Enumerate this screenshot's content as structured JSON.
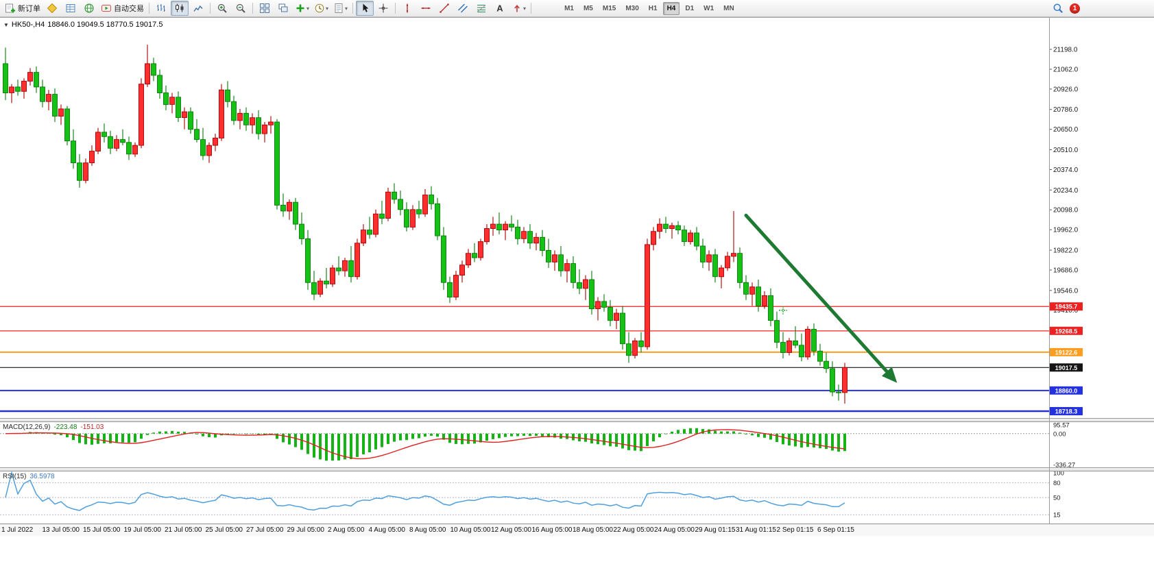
{
  "toolbar": {
    "new_order_label": "新订单",
    "autotrading_label": "自动交易",
    "timeframes": [
      "M1",
      "M5",
      "M15",
      "M30",
      "H1",
      "H4",
      "D1",
      "W1",
      "MN"
    ],
    "active_timeframe": "H4",
    "badge_count": "1",
    "icon_names": [
      "new-order-icon",
      "metaeditor-icon",
      "market-watch-icon",
      "web-icon",
      "autotrading-icon",
      "bar-chart-icon",
      "candlestick-chart-icon",
      "line-chart-icon",
      "zoom-in-icon",
      "zoom-out-icon",
      "tile-windows-icon",
      "cascade-windows-icon",
      "add-indicator-icon",
      "periods-icon",
      "templates-icon",
      "cursor-icon",
      "crosshair-icon",
      "vertical-line-icon",
      "horizontal-line-icon",
      "trendline-icon",
      "channel-icon",
      "fibonacci-icon",
      "text-icon",
      "arrows-icon",
      "search-icon",
      "notifications-badge"
    ]
  },
  "chart": {
    "symbol_timeframe": "HK50-,H4",
    "ohlc_text": "18846.0 19049.5 18770.5 19017.5"
  },
  "chart_data": {
    "type": "candlestick",
    "symbol": "HK50-",
    "timeframe": "H4",
    "current_bar": {
      "open": 18846.0,
      "high": 19049.5,
      "low": 18770.5,
      "close": 19017.5
    },
    "bull_color": "#ff2e2e",
    "bull_stroke": "#a80000",
    "bear_color": "#16c116",
    "bear_stroke": "#077a07",
    "price_axis_ticks": [
      "21198.0",
      "21062.0",
      "20926.0",
      "20786.0",
      "20650.0",
      "20510.0",
      "20374.0",
      "20234.0",
      "20098.0",
      "19962.0",
      "19822.0",
      "19686.0",
      "19546.0",
      "19410.0"
    ],
    "horizontal_lines": [
      {
        "price": 19435.7,
        "label": "19435.7",
        "color": "#f02020",
        "width": 1.2
      },
      {
        "price": 19268.5,
        "label": "19268.5",
        "color": "#f02020",
        "width": 1.2
      },
      {
        "price": 19122.6,
        "label": "19122.6",
        "color": "#ff9d1e",
        "width": 2
      },
      {
        "price": 19017.5,
        "label": "19017.5",
        "color": "#151515",
        "width": 1.2
      },
      {
        "price": 18860.0,
        "label": "18860.0",
        "color": "#2431e0",
        "width": 2
      },
      {
        "price": 18718.3,
        "label": "18718.3",
        "color": "#2431e0",
        "width": 2.4
      }
    ],
    "trend_arrow": {
      "from": {
        "bar": 120,
        "price": 20060
      },
      "to": {
        "bar": 144,
        "price": 18935
      },
      "color": "#1e7a33"
    },
    "cross_marker": {
      "bar": 126,
      "price": 19410,
      "color": "#28a428"
    },
    "candles": [
      [
        21100,
        21210,
        20850,
        20900
      ],
      [
        20900,
        20960,
        20830,
        20940
      ],
      [
        20940,
        20990,
        20880,
        20910
      ],
      [
        20910,
        21000,
        20860,
        20980
      ],
      [
        20980,
        21070,
        20950,
        21040
      ],
      [
        21040,
        21080,
        20900,
        20940
      ],
      [
        20940,
        20990,
        20800,
        20840
      ],
      [
        20840,
        20920,
        20780,
        20890
      ],
      [
        20890,
        20930,
        20700,
        20740
      ],
      [
        20740,
        20820,
        20680,
        20790
      ],
      [
        20790,
        20810,
        20540,
        20570
      ],
      [
        20570,
        20650,
        20380,
        20420
      ],
      [
        20420,
        20480,
        20250,
        20300
      ],
      [
        20300,
        20450,
        20280,
        20420
      ],
      [
        20420,
        20540,
        20400,
        20500
      ],
      [
        20500,
        20660,
        20480,
        20630
      ],
      [
        20630,
        20690,
        20560,
        20600
      ],
      [
        20600,
        20640,
        20480,
        20520
      ],
      [
        20520,
        20610,
        20500,
        20580
      ],
      [
        20580,
        20650,
        20540,
        20560
      ],
      [
        20560,
        20600,
        20440,
        20480
      ],
      [
        20480,
        20560,
        20460,
        20540
      ],
      [
        20540,
        21000,
        20520,
        20960
      ],
      [
        20960,
        21230,
        20940,
        21100
      ],
      [
        21100,
        21140,
        20980,
        21020
      ],
      [
        21020,
        21060,
        20860,
        20900
      ],
      [
        20900,
        20950,
        20780,
        20820
      ],
      [
        20820,
        20900,
        20760,
        20870
      ],
      [
        20870,
        20910,
        20700,
        20730
      ],
      [
        20730,
        20800,
        20650,
        20770
      ],
      [
        20770,
        20800,
        20620,
        20650
      ],
      [
        20650,
        20720,
        20560,
        20580
      ],
      [
        20580,
        20660,
        20440,
        20470
      ],
      [
        20470,
        20560,
        20420,
        20540
      ],
      [
        20540,
        20620,
        20500,
        20590
      ],
      [
        20590,
        20960,
        20570,
        20920
      ],
      [
        20920,
        20980,
        20800,
        20840
      ],
      [
        20840,
        20880,
        20680,
        20710
      ],
      [
        20710,
        20790,
        20650,
        20760
      ],
      [
        20760,
        20800,
        20640,
        20680
      ],
      [
        20680,
        20760,
        20620,
        20730
      ],
      [
        20730,
        20780,
        20580,
        20620
      ],
      [
        20620,
        20700,
        20560,
        20680
      ],
      [
        20680,
        20740,
        20620,
        20700
      ],
      [
        20700,
        20720,
        20100,
        20130
      ],
      [
        20130,
        20210,
        20050,
        20090
      ],
      [
        20090,
        20170,
        20030,
        20150
      ],
      [
        20150,
        20180,
        19960,
        20000
      ],
      [
        20000,
        20080,
        19860,
        19900
      ],
      [
        19900,
        19960,
        19550,
        19600
      ],
      [
        19600,
        19680,
        19480,
        19520
      ],
      [
        19520,
        19630,
        19500,
        19610
      ],
      [
        19610,
        19700,
        19560,
        19590
      ],
      [
        19590,
        19720,
        19570,
        19700
      ],
      [
        19700,
        19780,
        19650,
        19680
      ],
      [
        19680,
        19770,
        19640,
        19750
      ],
      [
        19750,
        19850,
        19600,
        19640
      ],
      [
        19640,
        19900,
        19620,
        19870
      ],
      [
        19870,
        20000,
        19850,
        19960
      ],
      [
        19960,
        20050,
        19900,
        19930
      ],
      [
        19930,
        20100,
        19910,
        20070
      ],
      [
        20070,
        20160,
        20000,
        20040
      ],
      [
        20040,
        20250,
        20020,
        20220
      ],
      [
        20220,
        20280,
        20140,
        20170
      ],
      [
        20170,
        20230,
        20060,
        20100
      ],
      [
        20100,
        20150,
        19950,
        19980
      ],
      [
        19980,
        20130,
        19960,
        20100
      ],
      [
        20100,
        20160,
        20040,
        20070
      ],
      [
        20070,
        20240,
        20050,
        20200
      ],
      [
        20200,
        20260,
        20100,
        20140
      ],
      [
        20140,
        20180,
        19890,
        19920
      ],
      [
        19920,
        19980,
        19550,
        19600
      ],
      [
        19600,
        19640,
        19460,
        19500
      ],
      [
        19500,
        19680,
        19480,
        19650
      ],
      [
        19650,
        19750,
        19600,
        19720
      ],
      [
        19720,
        19830,
        19700,
        19800
      ],
      [
        19800,
        19870,
        19740,
        19770
      ],
      [
        19770,
        19900,
        19750,
        19880
      ],
      [
        19880,
        20000,
        19860,
        19970
      ],
      [
        19970,
        20050,
        19920,
        20000
      ],
      [
        20000,
        20080,
        19930,
        19960
      ],
      [
        19960,
        20020,
        19890,
        20000
      ],
      [
        20000,
        20060,
        19950,
        19980
      ],
      [
        19980,
        20030,
        19860,
        19900
      ],
      [
        19900,
        19980,
        19870,
        19950
      ],
      [
        19950,
        20000,
        19830,
        19870
      ],
      [
        19870,
        19940,
        19820,
        19910
      ],
      [
        19910,
        19960,
        19780,
        19820
      ],
      [
        19820,
        19900,
        19700,
        19740
      ],
      [
        19740,
        19820,
        19680,
        19790
      ],
      [
        19790,
        19850,
        19640,
        19680
      ],
      [
        19680,
        19760,
        19600,
        19730
      ],
      [
        19730,
        19780,
        19560,
        19600
      ],
      [
        19600,
        19690,
        19520,
        19560
      ],
      [
        19560,
        19650,
        19480,
        19620
      ],
      [
        19620,
        19680,
        19380,
        19420
      ],
      [
        19420,
        19500,
        19340,
        19470
      ],
      [
        19470,
        19520,
        19400,
        19430
      ],
      [
        19430,
        19480,
        19300,
        19340
      ],
      [
        19340,
        19420,
        19280,
        19390
      ],
      [
        19390,
        19440,
        19140,
        19180
      ],
      [
        19180,
        19260,
        19050,
        19100
      ],
      [
        19100,
        19220,
        19080,
        19200
      ],
      [
        19200,
        19260,
        19120,
        19160
      ],
      [
        19160,
        19900,
        19140,
        19860
      ],
      [
        19860,
        19980,
        19820,
        19950
      ],
      [
        19950,
        20040,
        19900,
        20000
      ],
      [
        20000,
        20050,
        19940,
        19970
      ],
      [
        19970,
        20010,
        19900,
        19990
      ],
      [
        19990,
        20020,
        19930,
        19960
      ],
      [
        19960,
        19990,
        19850,
        19880
      ],
      [
        19880,
        19960,
        19860,
        19940
      ],
      [
        19940,
        19980,
        19820,
        19850
      ],
      [
        19850,
        19900,
        19700,
        19740
      ],
      [
        19740,
        19820,
        19680,
        19790
      ],
      [
        19790,
        19830,
        19600,
        19640
      ],
      [
        19640,
        19720,
        19560,
        19700
      ],
      [
        19700,
        19810,
        19680,
        19780
      ],
      [
        19780,
        20090,
        19740,
        19800
      ],
      [
        19800,
        19840,
        19560,
        19600
      ],
      [
        19600,
        19650,
        19480,
        19520
      ],
      [
        19520,
        19600,
        19440,
        19570
      ],
      [
        19570,
        19620,
        19400,
        19440
      ],
      [
        19440,
        19540,
        19420,
        19510
      ],
      [
        19510,
        19560,
        19300,
        19340
      ],
      [
        19340,
        19400,
        19150,
        19190
      ],
      [
        19190,
        19260,
        19080,
        19120
      ],
      [
        19120,
        19220,
        19100,
        19200
      ],
      [
        19200,
        19300,
        19150,
        19170
      ],
      [
        19170,
        19250,
        19060,
        19090
      ],
      [
        19090,
        19300,
        19070,
        19280
      ],
      [
        19280,
        19320,
        19100,
        19130
      ],
      [
        19130,
        19180,
        19030,
        19060
      ],
      [
        19060,
        19120,
        18980,
        19010
      ],
      [
        19010,
        19060,
        18820,
        18850
      ],
      [
        18850,
        18900,
        18790,
        18846
      ],
      [
        18846,
        19049.5,
        18770.5,
        19017.5
      ]
    ],
    "time_axis_labels": [
      "1 Jul 2022",
      "13 Jul 05:00",
      "15 Jul 05:00",
      "19 Jul 05:00",
      "21 Jul 05:00",
      "25 Jul 05:00",
      "27 Jul 05:00",
      "29 Jul 05:00",
      "2 Aug 05:00",
      "4 Aug 05:00",
      "8 Aug 05:00",
      "10 Aug 05:00",
      "12 Aug 05:00",
      "16 Aug 05:00",
      "18 Aug 05:00",
      "22 Aug 05:00",
      "24 Aug 05:00",
      "29 Aug 01:15",
      "31 Aug 01:15",
      "2 Sep 01:15",
      "6 Sep 01:15"
    ],
    "indicators": [
      {
        "type": "macd",
        "label": "MACD(12,26,9)",
        "params": [
          12,
          26,
          9
        ],
        "values": [
          "-223.48",
          "-151.03"
        ],
        "scale": {
          "max": 95.57,
          "min": -336.27
        },
        "axis_labels": [
          "95.57",
          "0.00",
          "-336.27"
        ],
        "histogram_color": "#15b315",
        "signal_color": "#e02020"
      },
      {
        "type": "rsi",
        "label": "RSI(15)",
        "params": [
          15
        ],
        "value": "36.5978",
        "levels": [
          80,
          50,
          15
        ],
        "axis_labels": [
          "100",
          "80",
          "50",
          "15"
        ],
        "line_color": "#4f9fdd"
      }
    ]
  }
}
